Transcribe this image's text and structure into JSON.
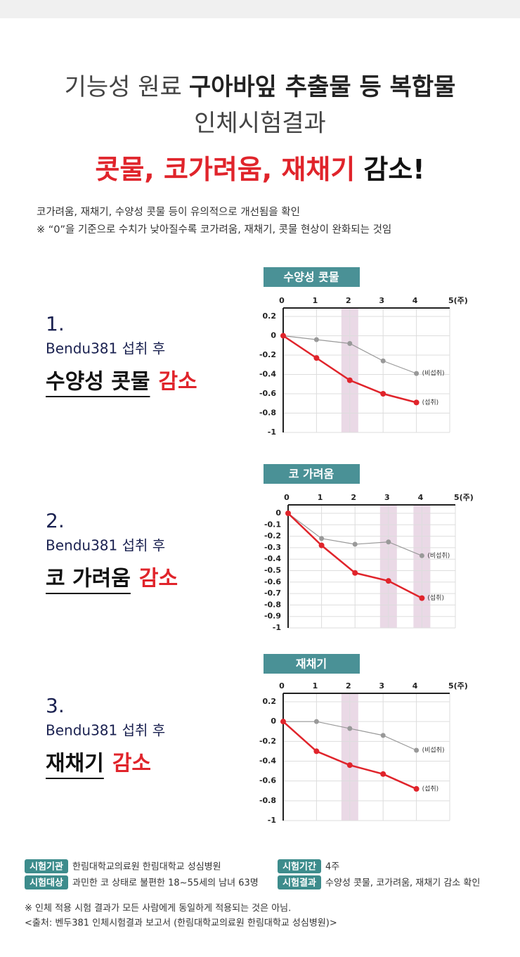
{
  "header": {
    "line1_normal": "기능성 원료",
    "line1_bold": "구아바잎 추출물 등 복합물",
    "line2": "인체시험결과",
    "headline_red": "콧물, 코가려움, 재채기",
    "headline_black": "감소!",
    "note1": "코가려움, 재채기, 수양성 콧물 등이 유의적으로 개선됨을 확인",
    "note2": "※ “0”을 기준으로 수치가 낮아질수록 코가려움, 재채기, 콧물 현상이 완화되는 것임"
  },
  "sections": [
    {
      "number": "1.",
      "subtitle": "Bendu381 섭취 후",
      "heading_black": "수양성 콧물",
      "heading_red": "감소"
    },
    {
      "number": "2.",
      "subtitle": "Bendu381 섭취 후",
      "heading_black": "코 가려움",
      "heading_red": "감소"
    },
    {
      "number": "3.",
      "subtitle": "Bendu381 섭취 후",
      "heading_black": "재채기",
      "heading_red": "감소"
    }
  ],
  "chart_data": [
    {
      "type": "line",
      "title": "수양성 콧물",
      "x": [
        0,
        1,
        2,
        3,
        4
      ],
      "xlim": [
        0,
        5
      ],
      "xticks": [
        0,
        1,
        2,
        3,
        4,
        {
          "value": 5,
          "label": "5(주)"
        }
      ],
      "ylim": [
        -1,
        0.2
      ],
      "yticks": [
        0.2,
        0,
        -0.2,
        -0.4,
        -0.6,
        -0.8,
        -1
      ],
      "grid": true,
      "highlight_x": [
        2
      ],
      "series": [
        {
          "name": "(비섭취)",
          "color": "#999999",
          "values": [
            0,
            -0.04,
            -0.08,
            -0.26,
            -0.39
          ]
        },
        {
          "name": "(섭취)",
          "color": "#e0242b",
          "values": [
            0,
            -0.23,
            -0.46,
            -0.6,
            -0.69
          ]
        }
      ]
    },
    {
      "type": "line",
      "title": "코 가려움",
      "x": [
        0,
        1,
        2,
        3,
        4
      ],
      "xlim": [
        0,
        5
      ],
      "xticks": [
        0,
        1,
        2,
        3,
        4,
        {
          "value": 5,
          "label": "5(주)"
        }
      ],
      "ylim": [
        -1,
        0
      ],
      "yticks": [
        0,
        -0.1,
        -0.2,
        -0.3,
        -0.4,
        -0.5,
        -0.6,
        -0.7,
        -0.8,
        -0.9,
        -1
      ],
      "grid": true,
      "highlight_x": [
        3,
        4
      ],
      "series": [
        {
          "name": "(비섭취)",
          "color": "#999999",
          "values": [
            0,
            -0.22,
            -0.27,
            -0.25,
            -0.37
          ]
        },
        {
          "name": "(섭취)",
          "color": "#e0242b",
          "values": [
            0,
            -0.28,
            -0.52,
            -0.59,
            -0.74
          ]
        }
      ]
    },
    {
      "type": "line",
      "title": "재채기",
      "x": [
        0,
        1,
        2,
        3,
        4
      ],
      "xlim": [
        0,
        5
      ],
      "xticks": [
        0,
        1,
        2,
        3,
        4,
        {
          "value": 5,
          "label": "5(주)"
        }
      ],
      "ylim": [
        -1,
        0.2
      ],
      "yticks": [
        0.2,
        0,
        -0.2,
        -0.4,
        -0.6,
        -0.8,
        -1
      ],
      "grid": true,
      "highlight_x": [
        2
      ],
      "series": [
        {
          "name": "(비섭취)",
          "color": "#999999",
          "values": [
            0,
            0,
            -0.07,
            -0.14,
            -0.29
          ]
        },
        {
          "name": "(섭취)",
          "color": "#e0242b",
          "values": [
            0,
            -0.3,
            -0.44,
            -0.53,
            -0.68
          ]
        }
      ]
    }
  ],
  "footer": {
    "info": [
      {
        "tag": "시험기관",
        "text": "한림대학교의료원 한림대학교 성심병원"
      },
      {
        "tag": "시험대상",
        "text": "과민한 코 상태로 불편한 18~55세의 남녀 63명"
      },
      {
        "tag": "시험기간",
        "text": "4주"
      },
      {
        "tag": "시험결과",
        "text": "수양성 콧물, 코가려움, 재채기 감소 확인"
      }
    ],
    "note1": "※ 인체 적용 시험 결과가 모든 사람에게 동일하게 적용되는 것은 아님.",
    "note2": "<출처: 벤두381 인체시험결과 보고서 (한림대학교의료원 한림대학교 성심병원)>"
  }
}
